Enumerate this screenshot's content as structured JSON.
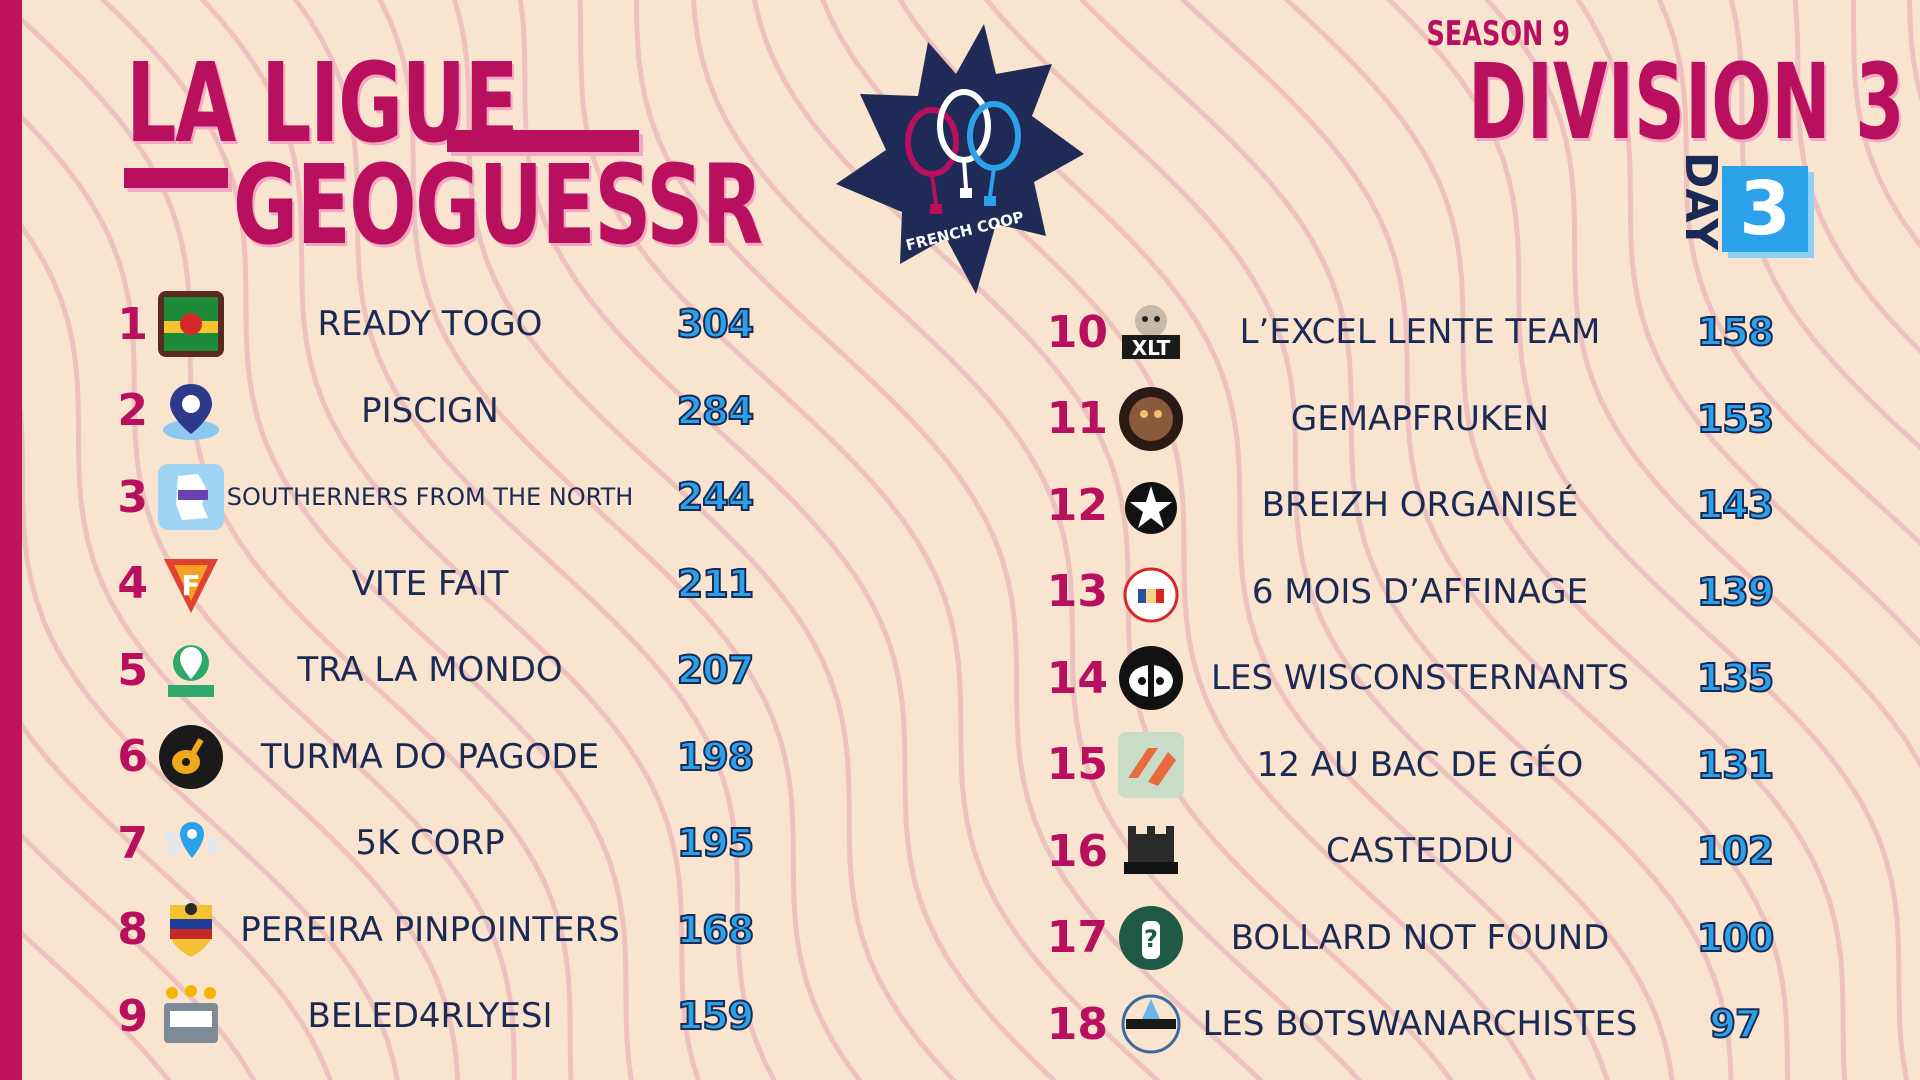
{
  "header": {
    "title_line1": "LA LIGUE",
    "title_line2": "GEOGUESSR",
    "season": "SEASON 9",
    "division": "DIVISION 3",
    "day_label": "DAY",
    "day_number": "3",
    "logo_text": "FRENCH COOP"
  },
  "colors": {
    "accent": "#b80f5e",
    "navy": "#1b2a55",
    "blue": "#2aa1e8",
    "background": "#f9e4cf"
  },
  "standings_left": [
    {
      "rank": "1",
      "team": "READY TOGO",
      "points": "304",
      "badge_icon": "ready-togo-badge-icon"
    },
    {
      "rank": "2",
      "team": "PISCIGN",
      "points": "284",
      "badge_icon": "piscign-pin-icon"
    },
    {
      "rank": "3",
      "team": "SOUTHERNERS FROM THE NORTH",
      "points": "244",
      "badge_icon": "map-badge-icon"
    },
    {
      "rank": "4",
      "team": "VITE FAIT",
      "points": "211",
      "badge_icon": "vite-fait-badge-icon"
    },
    {
      "rank": "5",
      "team": "TRA LA MONDO",
      "points": "207",
      "badge_icon": "tra-la-mondo-badge-icon"
    },
    {
      "rank": "6",
      "team": "TURMA DO PAGODE",
      "points": "198",
      "badge_icon": "guitar-badge-icon"
    },
    {
      "rank": "7",
      "team": "5K CORP",
      "points": "195",
      "badge_icon": "5k-corp-badge-icon"
    },
    {
      "rank": "8",
      "team": "PEREIRA PINPOINTERS",
      "points": "168",
      "badge_icon": "crest-badge-icon"
    },
    {
      "rank": "9",
      "team": "BELED4RLYESI",
      "points": "159",
      "badge_icon": "beled-badge-icon"
    }
  ],
  "standings_right": [
    {
      "rank": "10",
      "team": "L’EXCEL LENTE TEAM",
      "points": "158",
      "badge_icon": "xlt-badge-icon"
    },
    {
      "rank": "11",
      "team": "GEMAPFRUKEN",
      "points": "153",
      "badge_icon": "gemapfruken-badge-icon"
    },
    {
      "rank": "12",
      "team": "BREIZH ORGANISÉ",
      "points": "143",
      "badge_icon": "breizh-badge-icon"
    },
    {
      "rank": "13",
      "team": "6 MOIS D’AFFINAGE",
      "points": "139",
      "badge_icon": "cheese-badge-icon"
    },
    {
      "rank": "14",
      "team": "LES WISCONSTERNANTS",
      "points": "135",
      "badge_icon": "badger-badge-icon"
    },
    {
      "rank": "15",
      "team": "12 AU BAC DE GÉO",
      "points": "131",
      "badge_icon": "geo-badge-icon"
    },
    {
      "rank": "16",
      "team": "CASTEDDU",
      "points": "102",
      "badge_icon": "casteddu-badge-icon"
    },
    {
      "rank": "17",
      "team": "BOLLARD NOT FOUND",
      "points": "100",
      "badge_icon": "bollard-badge-icon"
    },
    {
      "rank": "18",
      "team": "LES BOTSWANARCHISTES",
      "points": "97",
      "badge_icon": "botswana-badge-icon"
    }
  ]
}
